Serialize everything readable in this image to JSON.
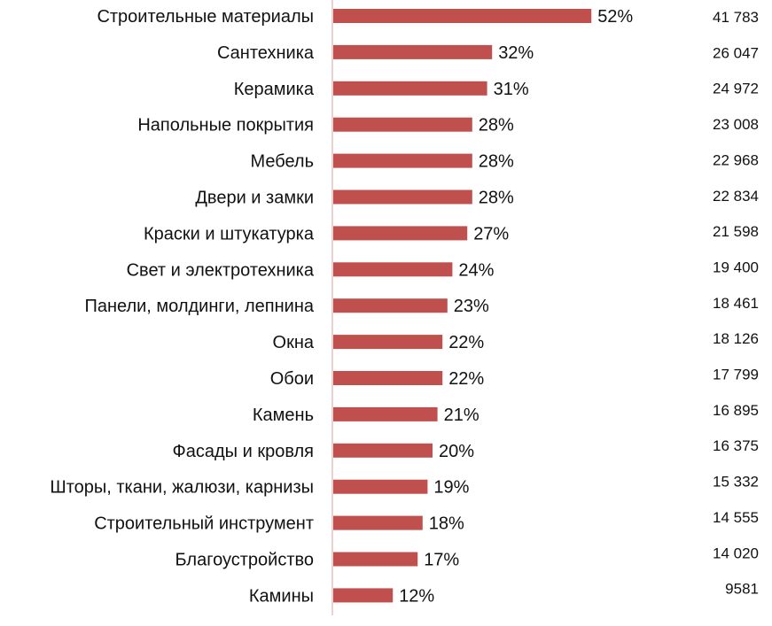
{
  "chart_data": {
    "type": "bar",
    "orientation": "horizontal",
    "categories": [
      "Строительные материалы",
      "Сантехника",
      "Керамика",
      "Напольные покрытия",
      "Мебель",
      "Двери и замки",
      "Краски и штукатурка",
      "Свет и электротехника",
      "Панели, молдинги, лепнина",
      "Окна",
      "Обои",
      "Камень",
      "Фасады и кровля",
      "Шторы, ткани, жалюзи, карнизы",
      "Строительный инструмент",
      "Благоустройство",
      "Камины"
    ],
    "values": [
      52,
      32,
      31,
      28,
      28,
      28,
      27,
      24,
      23,
      22,
      22,
      21,
      20,
      19,
      18,
      17,
      12
    ],
    "value_labels": [
      "52%",
      "32%",
      "31%",
      "28%",
      "28%",
      "28%",
      "27%",
      "24%",
      "23%",
      "22%",
      "22%",
      "21%",
      "20%",
      "19%",
      "18%",
      "17%",
      "12%"
    ],
    "counts": [
      "41 783",
      "26 047",
      "24 972",
      "23 008",
      "22 968",
      "22 834",
      "21 598",
      "19 400",
      "18 461",
      "18 126",
      "17 799",
      "16 895",
      "16 375",
      "15 332",
      "14 555",
      "14 020",
      "9581"
    ],
    "bar_color": "#c0504d",
    "axis_color": "#d9a3a3",
    "xlim": [
      0,
      55
    ],
    "grid": false,
    "legend": "none"
  }
}
